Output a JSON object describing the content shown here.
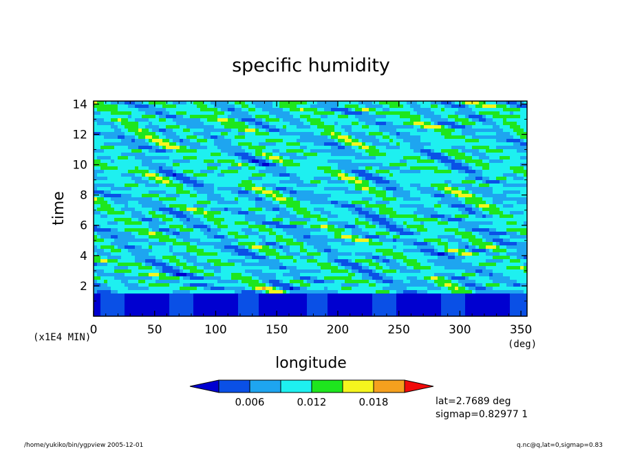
{
  "chart_data": {
    "type": "heatmap",
    "title": "specific humidity",
    "xlabel": "longitude",
    "ylabel": "time",
    "x_unit": "(deg)",
    "y_unit": "(x1E4 MIN)",
    "xlim": [
      0,
      355
    ],
    "ylim": [
      0,
      14.2
    ],
    "x_ticks": [
      0,
      50,
      100,
      150,
      200,
      250,
      300,
      350
    ],
    "y_ticks": [
      2,
      4,
      6,
      8,
      10,
      12,
      14
    ],
    "legend": {
      "levels": [
        0.003,
        0.006,
        0.009,
        0.012,
        0.015,
        0.018,
        0.021
      ],
      "tick_labels": [
        "0.006",
        "0.012",
        "0.018"
      ],
      "colors": [
        "#0000d0",
        "#0a50e6",
        "#1ea5f0",
        "#1ef0f0",
        "#1ee61e",
        "#f5f51e",
        "#f5a01e",
        "#f00a0a"
      ]
    },
    "description_values": "q ~0.002-0.003 for time < 1.5; patchy 0.004-0.015 above, occasional maxima ~0.018-0.021"
  },
  "annotations": {
    "lat": "lat=2.7689 deg",
    "sigmap": "sigmap=0.82977 1",
    "footer_left": "/home/yukiko/bin/ygpview  2005-12-01",
    "footer_right": "q.nc@q,lat=0,sigmap=0.83"
  }
}
